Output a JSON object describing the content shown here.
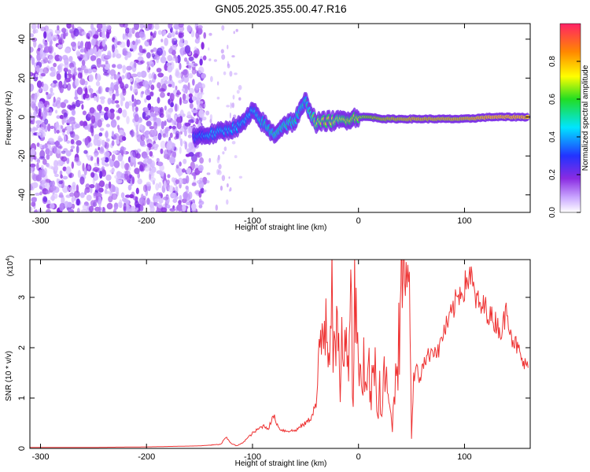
{
  "title": "GN05.2025.355.00.47.R16",
  "chart_data": [
    {
      "type": "heatmap",
      "xlabel": "Height of straight line (km)",
      "ylabel": "Frequency (Hz)",
      "xlim": [
        -310,
        162
      ],
      "ylim": [
        -49,
        48
      ],
      "xticks": [
        -300,
        -200,
        -100,
        0,
        100
      ],
      "yticks": [
        -40,
        -20,
        0,
        20,
        40
      ],
      "colorbar": {
        "label": "Normalized spectral amplitude",
        "range": [
          0,
          1
        ],
        "ticks": [
          "0.0",
          "0.2",
          "0.4",
          "0.6",
          "0.8"
        ],
        "colormap": "rainbow (purple → blue → cyan → green → yellow → orange → red)"
      },
      "ridge": {
        "description": "dominant frequency track",
        "points": [
          {
            "x": -155,
            "y": -10,
            "amp": 0.35
          },
          {
            "x": -140,
            "y": -9,
            "amp": 0.45
          },
          {
            "x": -125,
            "y": -7,
            "amp": 0.45
          },
          {
            "x": -110,
            "y": -4,
            "amp": 0.45
          },
          {
            "x": -100,
            "y": 3,
            "amp": 0.45
          },
          {
            "x": -90,
            "y": -3,
            "amp": 0.5
          },
          {
            "x": -80,
            "y": -9,
            "amp": 0.55
          },
          {
            "x": -70,
            "y": -4,
            "amp": 0.55
          },
          {
            "x": -60,
            "y": -2,
            "amp": 0.55
          },
          {
            "x": -50,
            "y": 8,
            "amp": 0.5
          },
          {
            "x": -40,
            "y": -3,
            "amp": 0.7
          },
          {
            "x": -30,
            "y": -2,
            "amp": 0.75
          },
          {
            "x": -20,
            "y": -2,
            "amp": 0.7
          },
          {
            "x": -10,
            "y": -1,
            "amp": 0.75
          },
          {
            "x": 0,
            "y": 0,
            "amp": 0.75
          },
          {
            "x": 10,
            "y": 0,
            "amp": 0.8
          },
          {
            "x": 25,
            "y": -1,
            "amp": 0.85
          },
          {
            "x": 50,
            "y": -1,
            "amp": 0.9
          },
          {
            "x": 75,
            "y": -1,
            "amp": 0.9
          },
          {
            "x": 100,
            "y": -1,
            "amp": 0.9
          },
          {
            "x": 125,
            "y": 0,
            "amp": 0.95
          },
          {
            "x": 160,
            "y": 0,
            "amp": 0.95
          }
        ]
      }
    },
    {
      "type": "line",
      "xlabel": "Height of straight line (km)",
      "ylabel": "SNR (10 * v/v)",
      "y_multiplier": "(x10",
      "y_multiplier_exp": "4",
      "xlim": [
        -310,
        162
      ],
      "ylim": [
        0,
        3.75
      ],
      "xticks": [
        -300,
        -200,
        -100,
        0,
        100
      ],
      "yticks": [
        0,
        1,
        2,
        3
      ],
      "color": "#ee3333",
      "series": [
        {
          "x": [
            -310,
            -250,
            -200,
            -150,
            -130,
            -125,
            -120,
            -115,
            -110,
            -100,
            -90,
            -85,
            -80,
            -75,
            -70,
            -60,
            -50,
            -45,
            -40,
            -35,
            -30,
            -28,
            -25,
            -24,
            -23,
            -22,
            -20,
            -18,
            -15,
            -10,
            -8,
            -5,
            -3,
            0,
            2,
            5,
            8,
            10,
            12,
            15,
            18,
            20,
            22,
            25,
            28,
            30,
            32,
            35,
            38,
            40,
            42,
            45,
            48,
            50,
            52,
            55,
            58,
            60,
            65,
            70,
            75,
            80,
            85,
            90,
            95,
            100,
            105,
            110,
            115,
            120,
            125,
            130,
            135,
            140,
            145,
            150,
            155,
            160
          ],
          "y": [
            0.02,
            0.02,
            0.03,
            0.05,
            0.08,
            0.22,
            0.1,
            0.05,
            0.1,
            0.3,
            0.45,
            0.4,
            0.65,
            0.4,
            0.35,
            0.35,
            0.5,
            0.6,
            0.9,
            2.1,
            2.9,
            2.0,
            3.7,
            2.5,
            3.3,
            1.5,
            2.4,
            1.2,
            2.3,
            1.6,
            3.7,
            1.2,
            3.7,
            1.8,
            1.3,
            1.8,
            1.1,
            1.6,
            1.0,
            1.9,
            0.9,
            1.3,
            0.6,
            1.7,
            0.8,
            1.2,
            0.4,
            1.4,
            2.2,
            3.0,
            3.6,
            3.55,
            3.5,
            0.2,
            1.4,
            1.6,
            1.3,
            1.7,
            1.8,
            2.0,
            1.9,
            2.3,
            2.5,
            2.8,
            3.1,
            3.2,
            3.5,
            3.0,
            2.8,
            2.8,
            2.6,
            2.5,
            2.3,
            2.8,
            2.2,
            2.0,
            1.7,
            1.6
          ]
        }
      ]
    }
  ]
}
